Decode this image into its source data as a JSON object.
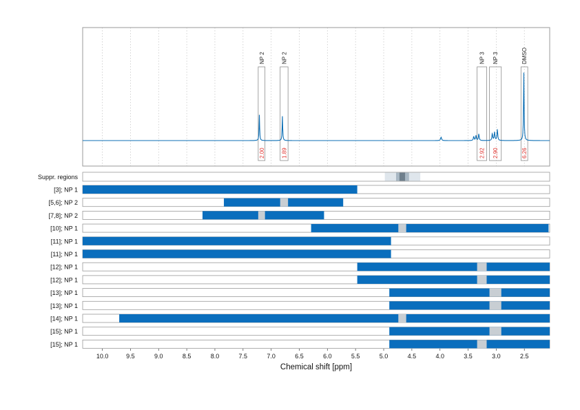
{
  "chart_data": {
    "type": "bar",
    "xlabel": "Chemical shift [ppm]",
    "xlim": [
      10.35,
      2.05
    ],
    "x_reversed": true,
    "xticks": [
      "10.0",
      "9.5",
      "9.0",
      "8.5",
      "8.0",
      "7.5",
      "7.0",
      "6.5",
      "6.0",
      "5.5",
      "5.0",
      "4.5",
      "4.0",
      "3.5",
      "3.0",
      "2.5"
    ],
    "spectrum": {
      "color": "#0d6fb5",
      "peaks": [
        {
          "label": "NP 2",
          "center": 7.21,
          "window": [
            7.23,
            7.11
          ],
          "height": 0.37,
          "integral": "2.00"
        },
        {
          "label": "NP 2",
          "center": 6.8,
          "window": [
            6.84,
            6.7
          ],
          "height": 0.35,
          "integral": "1.89"
        },
        {
          "label": "NP 3",
          "center": 3.33,
          "window": [
            3.34,
            3.17
          ],
          "height": 0.12,
          "integral": "2.92"
        },
        {
          "label": "NP 3",
          "center": 3.0,
          "window": [
            3.12,
            2.91
          ],
          "height": 0.2,
          "integral": "2.90"
        },
        {
          "label": "DMSO",
          "center": 2.51,
          "window": [
            2.56,
            2.44
          ],
          "height": 1.0,
          "integral": "6.26"
        }
      ],
      "minor_peaks": [
        {
          "center": 3.98,
          "height": 0.05
        }
      ]
    },
    "suppressed_regions": {
      "label": "Suppr. regions",
      "light": [
        4.98,
        4.35
      ],
      "mid": [
        4.78,
        4.55
      ],
      "dark": [
        4.72,
        4.62
      ]
    },
    "rows": [
      {
        "label": "[3]; NP 1",
        "blue": [
          [
            10.35,
            5.47
          ]
        ],
        "gray": []
      },
      {
        "label": "[5,6]; NP 2",
        "blue": [
          [
            7.84,
            5.72
          ]
        ],
        "gray": [
          [
            6.84,
            6.7
          ]
        ]
      },
      {
        "label": "[7,8]; NP 2",
        "blue": [
          [
            8.22,
            6.06
          ]
        ],
        "gray": [
          [
            7.23,
            7.11
          ]
        ]
      },
      {
        "label": "[10]; NP 1",
        "blue": [
          [
            6.29,
            2.07
          ]
        ],
        "gray": [
          [
            4.74,
            4.6
          ]
        ]
      },
      {
        "label": "[11]; NP 1",
        "blue": [
          [
            10.35,
            4.87
          ]
        ],
        "gray": []
      },
      {
        "label": "[11]; NP 1",
        "blue": [
          [
            10.35,
            4.87
          ]
        ],
        "gray": []
      },
      {
        "label": "[12]; NP 1",
        "blue": [
          [
            5.47,
            2.05
          ]
        ],
        "gray": [
          [
            3.34,
            3.17
          ]
        ]
      },
      {
        "label": "[12]; NP 1",
        "blue": [
          [
            5.47,
            2.05
          ]
        ],
        "gray": [
          [
            3.34,
            3.17
          ]
        ]
      },
      {
        "label": "[13]; NP 1",
        "blue": [
          [
            4.9,
            2.05
          ]
        ],
        "gray": [
          [
            3.12,
            2.91
          ]
        ]
      },
      {
        "label": "[13]; NP 1",
        "blue": [
          [
            4.9,
            2.05
          ]
        ],
        "gray": [
          [
            3.12,
            2.91
          ]
        ]
      },
      {
        "label": "[14]; NP 1",
        "blue": [
          [
            9.7,
            2.05
          ]
        ],
        "gray": [
          [
            4.74,
            4.6
          ]
        ]
      },
      {
        "label": "[15]; NP 1",
        "blue": [
          [
            4.9,
            2.05
          ]
        ],
        "gray": [
          [
            3.12,
            2.91
          ]
        ]
      },
      {
        "label": "[15]; NP 1",
        "blue": [
          [
            4.9,
            2.05
          ]
        ],
        "gray": [
          [
            3.34,
            3.17
          ]
        ]
      }
    ],
    "colors": {
      "spectrum": "#0d6fb5",
      "bar": "#0a6ebd",
      "gap": "#c8ced3",
      "integral": "#e0322d",
      "grid": "#c8c8c8",
      "frame": "#9a9a9a",
      "suppr_light": "#dfe6ec",
      "suppr_mid": "#a9b8c4",
      "suppr_dark": "#6f7f8c"
    },
    "grid": true
  }
}
